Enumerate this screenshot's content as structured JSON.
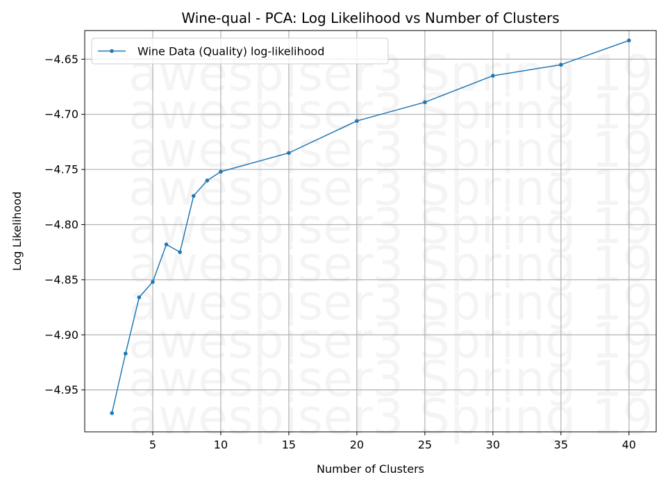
{
  "chart_data": {
    "type": "line",
    "title": "Wine-qual - PCA: Log Likelihood vs Number of Clusters",
    "xlabel": "Number of Clusters",
    "ylabel": "Log Likelihood",
    "xlim": [
      0,
      42
    ],
    "ylim": [
      -4.988,
      -4.624
    ],
    "xticks": [
      5,
      10,
      15,
      20,
      25,
      30,
      35,
      40
    ],
    "yticks": [
      -4.95,
      -4.9,
      -4.85,
      -4.8,
      -4.75,
      -4.7,
      -4.65
    ],
    "grid": true,
    "legend_position": "top-left",
    "watermark": "awespiser3 Spring 19",
    "series": [
      {
        "name": "Wine Data (Quality) log-likelihood",
        "color": "#1f77b4",
        "x": [
          2,
          3,
          4,
          5,
          6,
          7,
          8,
          9,
          10,
          15,
          20,
          25,
          30,
          35,
          40
        ],
        "y": [
          -4.971,
          -4.917,
          -4.866,
          -4.852,
          -4.818,
          -4.825,
          -4.774,
          -4.76,
          -4.752,
          -4.735,
          -4.706,
          -4.689,
          -4.665,
          -4.655,
          -4.633
        ]
      }
    ]
  }
}
